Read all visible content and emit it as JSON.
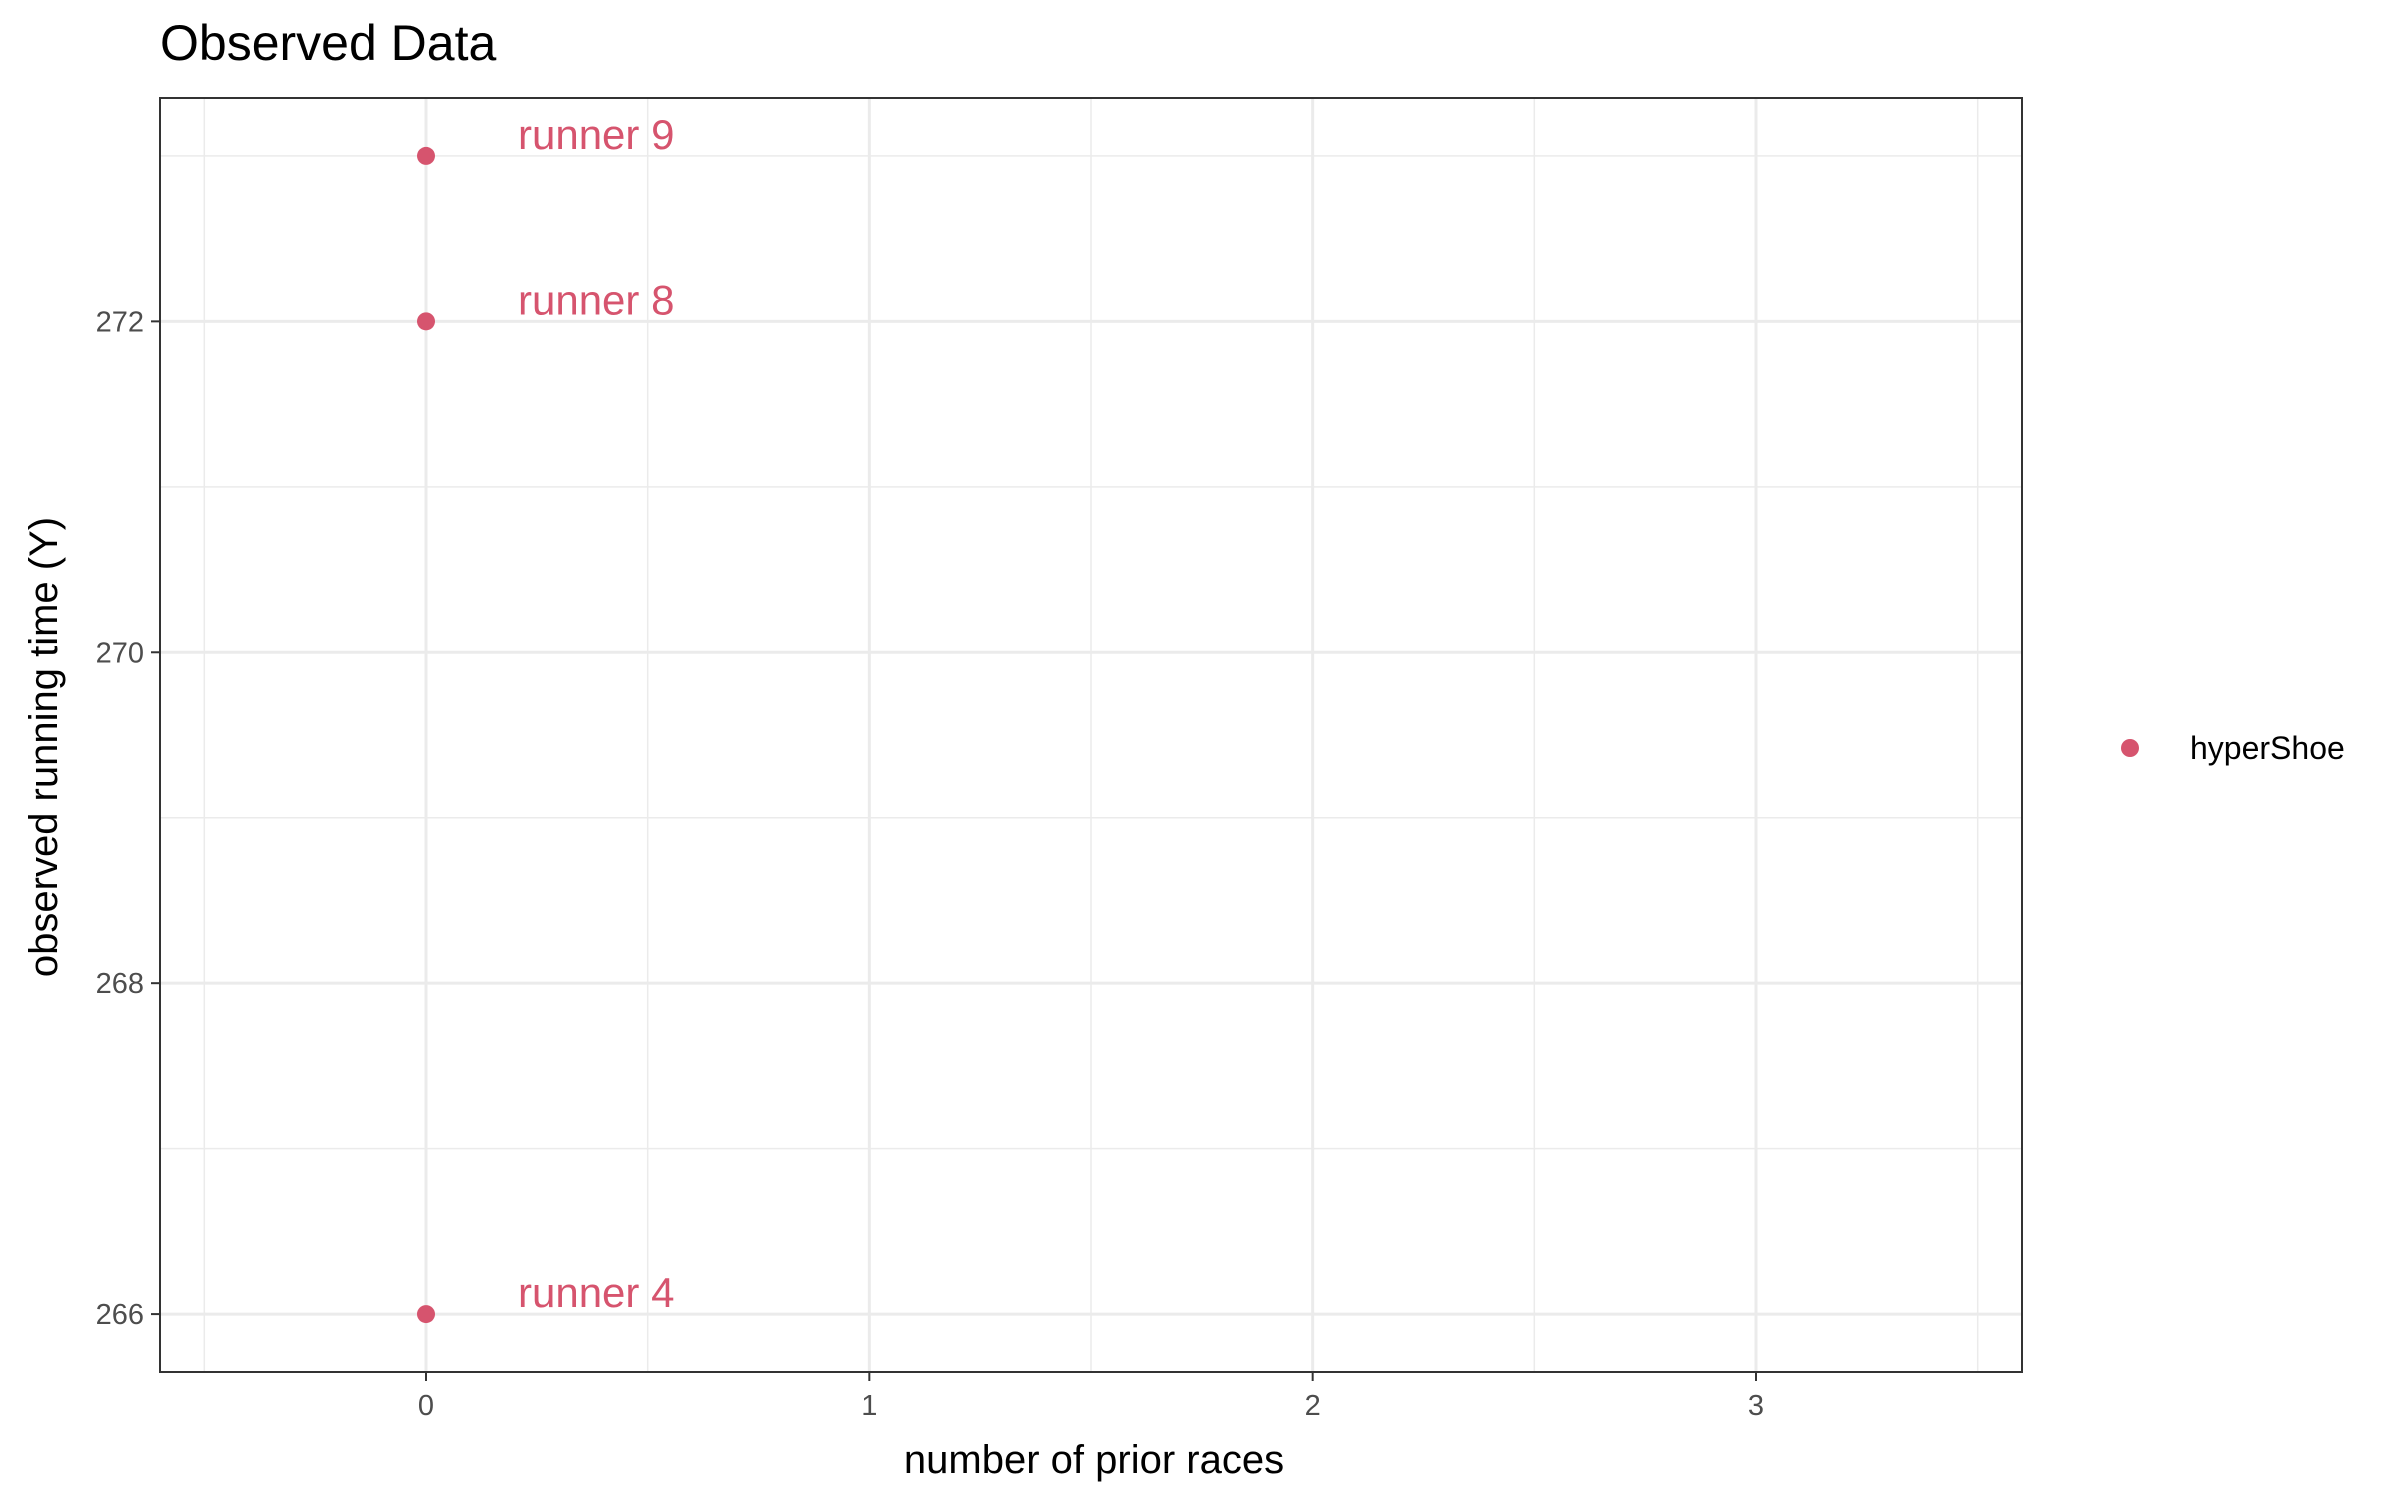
{
  "chart_data": {
    "type": "scatter",
    "title": "Observed Data",
    "xlabel": "number of prior races",
    "ylabel": "observed running time (Y)",
    "xlim": [
      -0.6,
      3.6
    ],
    "ylim": [
      265.65,
      273.35
    ],
    "x_ticks": [
      0,
      1,
      2,
      3
    ],
    "y_ticks": [
      266,
      268,
      270,
      272
    ],
    "x_tick_labels": [
      "0",
      "1",
      "2",
      "3"
    ],
    "y_tick_labels": [
      "266",
      "268",
      "270",
      "272"
    ],
    "grid": true,
    "legend_position": "right",
    "series": [
      {
        "name": "hyperShoe",
        "color": "#D6546E",
        "points": [
          {
            "x": 0,
            "y": 273,
            "label": "runner 9"
          },
          {
            "x": 0,
            "y": 272,
            "label": "runner 8"
          },
          {
            "x": 0,
            "y": 266,
            "label": "runner 4"
          }
        ]
      }
    ]
  }
}
